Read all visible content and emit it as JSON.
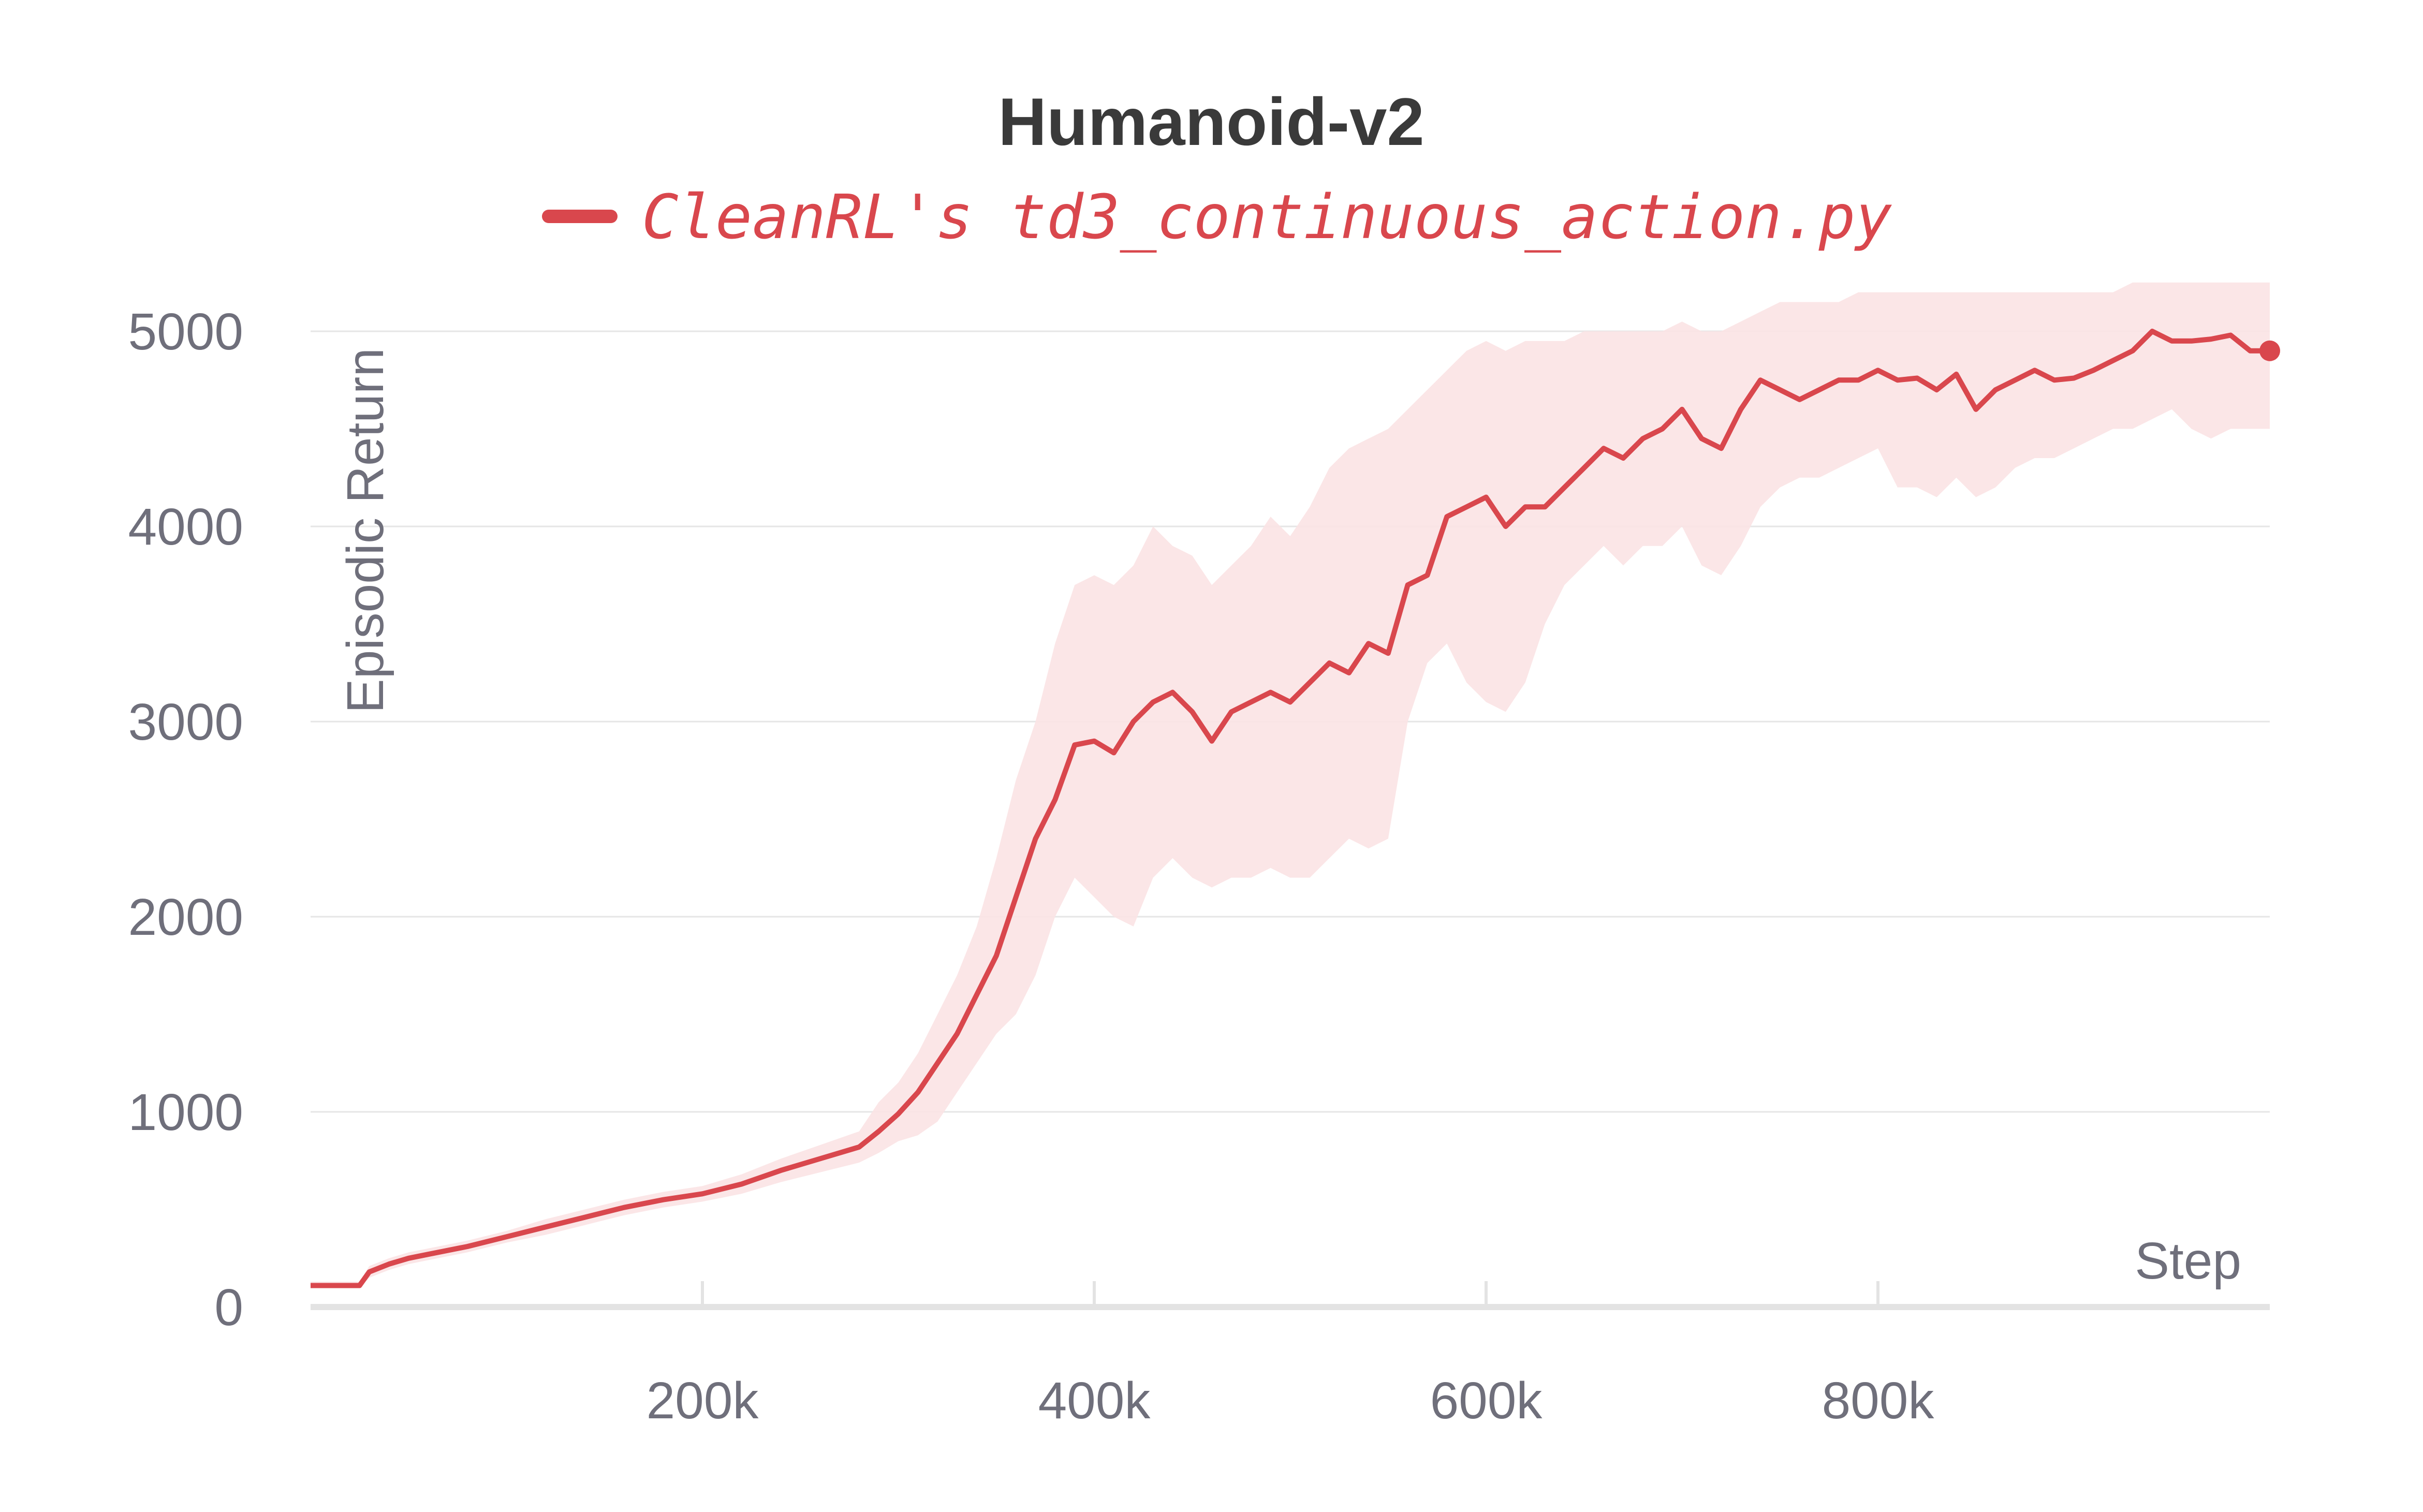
{
  "colors": {
    "series": "#d9474d",
    "band": "#fbe3e4",
    "grid": "#e6e6e6",
    "axis": "#e3e3e3",
    "text": "#6f6f7b",
    "title": "#3a3a3a"
  },
  "chart_data": {
    "type": "line",
    "title": "Humanoid-v2",
    "xlabel": "Step",
    "ylabel": "Episodic Return",
    "xlim": [
      0,
      1000000
    ],
    "ylim": [
      0,
      5000
    ],
    "x_ticks": [
      200000,
      400000,
      600000,
      800000
    ],
    "x_tick_labels": [
      "200k",
      "400k",
      "600k",
      "800k"
    ],
    "y_ticks": [
      0,
      1000,
      2000,
      3000,
      4000,
      5000
    ],
    "y_tick_labels": [
      "0",
      "1000",
      "2000",
      "3000",
      "4000",
      "5000"
    ],
    "grid": true,
    "legend": "top-center",
    "series": [
      {
        "name": "CleanRL's td3_continuous_action.py",
        "color": "#d9474d",
        "x": [
          0,
          25000,
          30000,
          40000,
          50000,
          60000,
          80000,
          100000,
          120000,
          140000,
          160000,
          180000,
          200000,
          220000,
          240000,
          260000,
          280000,
          290000,
          300000,
          310000,
          320000,
          330000,
          340000,
          350000,
          360000,
          370000,
          380000,
          390000,
          400000,
          410000,
          420000,
          430000,
          440000,
          450000,
          460000,
          470000,
          480000,
          490000,
          500000,
          510000,
          520000,
          530000,
          540000,
          550000,
          560000,
          570000,
          580000,
          590000,
          600000,
          610000,
          620000,
          630000,
          640000,
          650000,
          660000,
          670000,
          680000,
          690000,
          700000,
          710000,
          720000,
          730000,
          740000,
          750000,
          760000,
          770000,
          780000,
          790000,
          800000,
          810000,
          820000,
          830000,
          840000,
          850000,
          860000,
          870000,
          880000,
          890000,
          900000,
          910000,
          920000,
          930000,
          940000,
          950000,
          960000,
          970000,
          980000,
          990000,
          1000000
        ],
        "y": [
          110,
          110,
          180,
          220,
          250,
          270,
          310,
          360,
          410,
          460,
          510,
          550,
          580,
          630,
          700,
          760,
          820,
          900,
          990,
          1100,
          1250,
          1400,
          1600,
          1800,
          2100,
          2400,
          2600,
          2880,
          2900,
          2840,
          3000,
          3100,
          3150,
          3050,
          2900,
          3050,
          3100,
          3150,
          3100,
          3200,
          3300,
          3250,
          3400,
          3350,
          3700,
          3750,
          4050,
          4100,
          4150,
          4000,
          4100,
          4100,
          4200,
          4300,
          4400,
          4350,
          4450,
          4500,
          4600,
          4450,
          4400,
          4600,
          4750,
          4700,
          4650,
          4700,
          4750,
          4750,
          4800,
          4750,
          4760,
          4700,
          4780,
          4600,
          4700,
          4750,
          4800,
          4750,
          4760,
          4800,
          4850,
          4900,
          5000,
          4950,
          4950,
          4960,
          4980,
          4900,
          4900
        ],
        "lower": [
          100,
          100,
          150,
          190,
          220,
          240,
          280,
          330,
          370,
          420,
          470,
          510,
          540,
          580,
          640,
          690,
          740,
          790,
          850,
          880,
          950,
          1100,
          1250,
          1400,
          1500,
          1700,
          2000,
          2200,
          2100,
          2000,
          1950,
          2200,
          2300,
          2200,
          2150,
          2200,
          2200,
          2250,
          2200,
          2200,
          2300,
          2400,
          2350,
          2400,
          3000,
          3300,
          3400,
          3200,
          3100,
          3050,
          3200,
          3500,
          3700,
          3800,
          3900,
          3800,
          3900,
          3900,
          4000,
          3800,
          3750,
          3900,
          4100,
          4200,
          4250,
          4250,
          4300,
          4350,
          4400,
          4200,
          4200,
          4150,
          4250,
          4150,
          4200,
          4300,
          4350,
          4350,
          4400,
          4450,
          4500,
          4500,
          4550,
          4600,
          4500,
          4450,
          4500,
          4500,
          4500
        ],
        "upper": [
          130,
          130,
          210,
          250,
          280,
          300,
          340,
          390,
          450,
          500,
          550,
          590,
          620,
          680,
          760,
          830,
          900,
          1050,
          1150,
          1300,
          1500,
          1700,
          1950,
          2300,
          2700,
          3000,
          3400,
          3700,
          3750,
          3700,
          3800,
          4000,
          3900,
          3850,
          3700,
          3800,
          3900,
          4050,
          3950,
          4100,
          4300,
          4400,
          4450,
          4500,
          4600,
          4700,
          4800,
          4900,
          4950,
          4900,
          4950,
          4950,
          4950,
          5000,
          5000,
          5000,
          5000,
          5000,
          5050,
          5000,
          5000,
          5050,
          5100,
          5150,
          5150,
          5150,
          5150,
          5200,
          5200,
          5200,
          5200,
          5200,
          5200,
          5200,
          5200,
          5200,
          5200,
          5200,
          5200,
          5200,
          5200,
          5250,
          5250,
          5250,
          5250,
          5250,
          5250,
          5250,
          5250
        ]
      }
    ]
  }
}
